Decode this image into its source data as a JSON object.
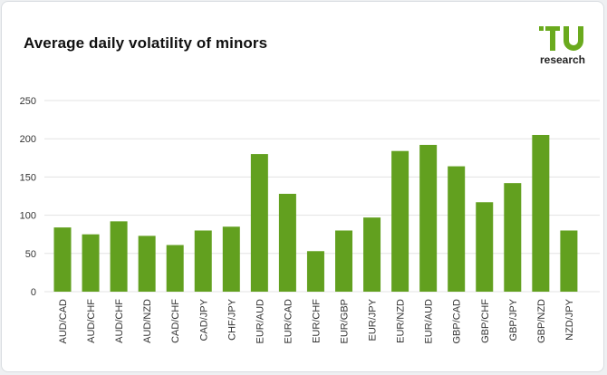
{
  "page": {
    "title": "Average daily volatility of minors",
    "logo": {
      "text": "research",
      "mark": "TU",
      "icon": "tu-logo-icon",
      "color": "#6aaa1e"
    }
  },
  "chart_data": {
    "type": "bar",
    "title": "Average daily volatility of minors",
    "xlabel": "",
    "ylabel": "",
    "categories": [
      "AUD/CAD",
      "AUD/CHF",
      "AUD/CHF",
      "AUD/NZD",
      "CAD/CHF",
      "CAD/JPY",
      "CHF/JPY",
      "EUR/AUD",
      "EUR/CAD",
      "EUR/CHF",
      "EUR/GBP",
      "EUR/JPY",
      "EUR/NZD",
      "EUR/AUD",
      "GBP/CAD",
      "GBP/CHF",
      "GBP/JPY",
      "GBP/NZD",
      "NZD/JPY"
    ],
    "values": [
      84,
      75,
      92,
      73,
      61,
      80,
      85,
      180,
      128,
      53,
      80,
      97,
      184,
      192,
      164,
      117,
      142,
      205,
      80
    ],
    "ylim": [
      0,
      250
    ],
    "yticks": [
      0,
      50,
      100,
      150,
      200,
      250
    ],
    "grid": true,
    "bar_color": "#62a01f",
    "grid_color": "#e3e3e3"
  }
}
